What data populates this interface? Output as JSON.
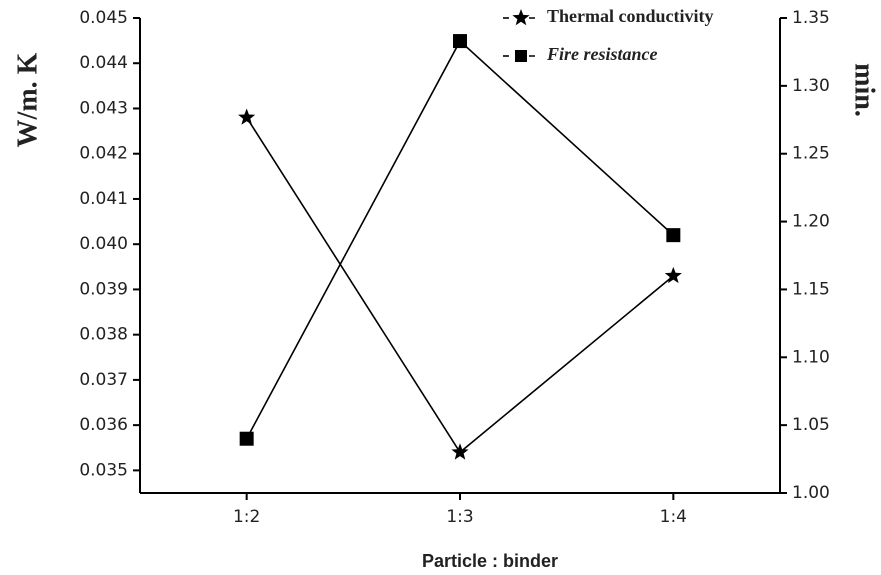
{
  "chart_data": {
    "type": "line",
    "categories": [
      "1:2",
      "1:3",
      "1:4"
    ],
    "series": [
      {
        "name": "Thermal conductivity",
        "color": "#000000",
        "marker": "star",
        "values": [
          0.0428,
          0.0354,
          0.0393
        ]
      },
      {
        "name": "Fire resistance",
        "color": "#000000",
        "marker": "square",
        "axis": "y2",
        "values": [
          1.04,
          1.333,
          1.19
        ]
      }
    ],
    "ylabel": "W/m. K",
    "y2label": "min.",
    "xlabel": "Particle : binder",
    "ylim": [
      0.0345,
      0.045
    ],
    "yticks": [
      0.035,
      0.036,
      0.037,
      0.038,
      0.039,
      {
        "value": 0.04,
        "label": "0.040"
      },
      0.041,
      0.042,
      0.043,
      0.044,
      0.045
    ],
    "y2lim": [
      1.0,
      1.35
    ],
    "y2ticks": [
      {
        "value": 1.0,
        "label": "1.00"
      },
      1.05,
      {
        "value": 1.1,
        "label": "1.10"
      },
      1.15,
      {
        "value": 1.2,
        "label": "1.20"
      },
      1.25,
      {
        "value": 1.3,
        "label": "1.30"
      },
      1.35
    ],
    "legend": "top-right"
  }
}
